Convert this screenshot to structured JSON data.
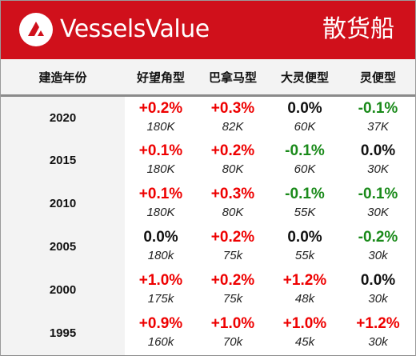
{
  "header": {
    "brand": "VesselsValue",
    "category": "散货船",
    "logo_icon": "vesselsvalue-logo-icon",
    "background_color": "#d0101b"
  },
  "columns": {
    "year": "建造年份",
    "types": [
      "好望角型",
      "巴拿马型",
      "大灵便型",
      "灵便型"
    ]
  },
  "colors": {
    "positive": "#ee0000",
    "negative": "#1a8a1a",
    "neutral": "#111111"
  },
  "rows": [
    {
      "year": "2020",
      "cells": [
        {
          "change": "+0.2%",
          "size": "180K",
          "trend": "pos"
        },
        {
          "change": "+0.3%",
          "size": "82K",
          "trend": "pos"
        },
        {
          "change": "0.0%",
          "size": "60K",
          "trend": "zero"
        },
        {
          "change": "-0.1%",
          "size": "37K",
          "trend": "neg"
        }
      ]
    },
    {
      "year": "2015",
      "cells": [
        {
          "change": "+0.1%",
          "size": "180K",
          "trend": "pos"
        },
        {
          "change": "+0.2%",
          "size": "80K",
          "trend": "pos"
        },
        {
          "change": "-0.1%",
          "size": "60K",
          "trend": "neg"
        },
        {
          "change": "0.0%",
          "size": "30K",
          "trend": "zero"
        }
      ]
    },
    {
      "year": "2010",
      "cells": [
        {
          "change": "+0.1%",
          "size": "180K",
          "trend": "pos"
        },
        {
          "change": "+0.3%",
          "size": "80K",
          "trend": "pos"
        },
        {
          "change": "-0.1%",
          "size": "55K",
          "trend": "neg"
        },
        {
          "change": "-0.1%",
          "size": "30K",
          "trend": "neg"
        }
      ]
    },
    {
      "year": "2005",
      "cells": [
        {
          "change": "0.0%",
          "size": "180k",
          "trend": "zero"
        },
        {
          "change": "+0.2%",
          "size": "75k",
          "trend": "pos"
        },
        {
          "change": "0.0%",
          "size": "55k",
          "trend": "zero"
        },
        {
          "change": "-0.2%",
          "size": "30k",
          "trend": "neg"
        }
      ]
    },
    {
      "year": "2000",
      "cells": [
        {
          "change": "+1.0%",
          "size": "175k",
          "trend": "pos"
        },
        {
          "change": "+0.2%",
          "size": "75k",
          "trend": "pos"
        },
        {
          "change": "+1.2%",
          "size": "48k",
          "trend": "pos"
        },
        {
          "change": "0.0%",
          "size": "30k",
          "trend": "zero"
        }
      ]
    },
    {
      "year": "1995",
      "cells": [
        {
          "change": "+0.9%",
          "size": "160k",
          "trend": "pos"
        },
        {
          "change": "+1.0%",
          "size": "70k",
          "trend": "pos"
        },
        {
          "change": "+1.0%",
          "size": "45k",
          "trend": "pos"
        },
        {
          "change": "+1.2%",
          "size": "30k",
          "trend": "pos"
        }
      ]
    }
  ]
}
